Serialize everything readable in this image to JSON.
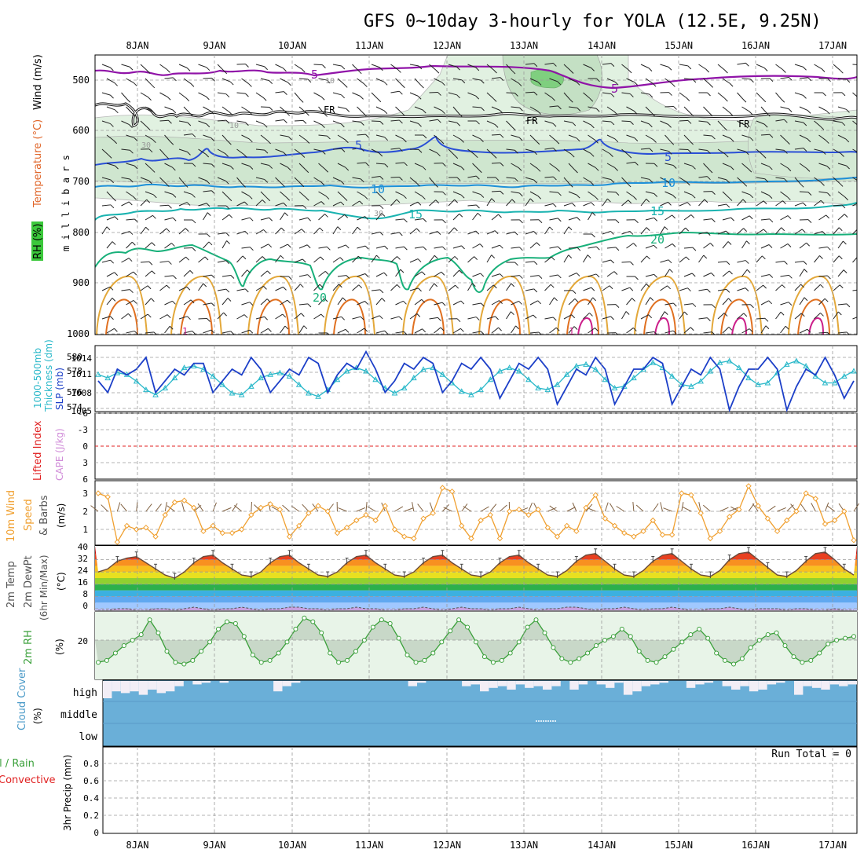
{
  "title": "GFS 0~10day 3-hourly for YOLA (12.5E, 9.25N)",
  "dates": [
    "8JAN",
    "9JAN",
    "10JAN",
    "11JAN",
    "12JAN",
    "13JAN",
    "14JAN",
    "15JAN",
    "16JAN",
    "17JAN"
  ],
  "colors": {
    "rh_fill": "#dcefdc",
    "rh_dark": "#88d488",
    "t_purple": "#9013a8",
    "t_blue": "#2a4fd6",
    "t_lblue": "#1e90d8",
    "t_teal": "#1ab3b0",
    "t_green": "#18b07a",
    "t_orange": "#e3a83a",
    "t_dorange": "#e07020",
    "t_magenta": "#cc1f8a",
    "slp": "#1c3fc8",
    "thick": "#29b8c9",
    "cape": "#d08bd8",
    "wind": "#f0a030",
    "rh2m": "#3aa03a",
    "cloud": "#6aafd8",
    "li": "#e02020"
  },
  "panels": {
    "upper": {
      "y_label_rh": "RH (%)",
      "y_label_temp": "Temperature (°C)",
      "y_label_wind": "Wind (m/s)",
      "y_label_mb": "m i l l i b a r s",
      "ticks": [
        "500",
        "600",
        "700",
        "800",
        "900",
        "1000"
      ],
      "contour_labels": [
        {
          "id": "l5a",
          "text": "5"
        },
        {
          "id": "l5b",
          "text": "5"
        },
        {
          "id": "lfra",
          "text": "FR"
        },
        {
          "id": "lfrb",
          "text": "FR"
        },
        {
          "id": "lfrc",
          "text": "FR"
        },
        {
          "id": "l5c",
          "text": "5"
        },
        {
          "id": "l5d",
          "text": "5"
        },
        {
          "id": "l10a",
          "text": "10"
        },
        {
          "id": "l10b",
          "text": "10"
        },
        {
          "id": "l15a",
          "text": "15"
        },
        {
          "id": "l15b",
          "text": "15"
        },
        {
          "id": "l20a",
          "text": "20"
        },
        {
          "id": "l20b",
          "text": "20"
        },
        {
          "id": "g10",
          "text": "10"
        },
        {
          "id": "g30a",
          "text": "30"
        },
        {
          "id": "g30b",
          "text": "30"
        },
        {
          "id": "g10b",
          "text": "10"
        },
        {
          "id": "m1",
          "text": "1"
        },
        {
          "id": "m2",
          "text": "1"
        }
      ]
    },
    "slp": {
      "label_a": "1000-500mb",
      "label_b": "Thickness (dm)",
      "label_c": "SLP (mb)",
      "left_ticks": [
        "580",
        "578",
        "576",
        "574"
      ],
      "right_ticks": [
        "1014",
        "1011",
        "1008",
        "1005"
      ]
    },
    "cape": {
      "label_a": "Lifted Index",
      "label_b": "CAPE (J/kg)",
      "ticks": [
        "-6",
        "-3",
        "0",
        "3",
        "6"
      ]
    },
    "wind": {
      "label_a": "10m Wind",
      "label_b": "Speed",
      "label_c": "& Barbs",
      "label_unit": "(m/s)",
      "ticks": [
        "3",
        "2",
        "1"
      ]
    },
    "temp": {
      "label_a": "2m Temp",
      "label_b": "2m DewPt",
      "label_c": "(6hr Min/Max)",
      "label_unit": "(°C)",
      "ticks": [
        "40",
        "32",
        "24",
        "16",
        "8",
        "0"
      ]
    },
    "rh": {
      "label_a": "2m RH",
      "label_unit": "(%)",
      "ticks": [
        "20"
      ]
    },
    "cloud": {
      "label_a": "Cloud Cover",
      "label_unit": "(%)",
      "levels": [
        "high",
        "middle",
        "low"
      ]
    },
    "precip": {
      "label_a": "tal / Rain",
      "label_b": "Convective",
      "label_c": "3hr Precip (mm)",
      "run_total": "Run Total = 0",
      "ticks": [
        "0.8",
        "0.6",
        "0.4",
        "0.2",
        "0"
      ]
    }
  },
  "chart_data": [
    {
      "type": "line",
      "title": "1000-500mb Thickness (dm) / SLP (mb)",
      "series": [
        {
          "name": "SLP (mb)",
          "axis": "right",
          "values": [
            1010,
            1008,
            1012,
            1011,
            1012,
            1014,
            1008,
            1010,
            1012,
            1011,
            1013,
            1013,
            1008,
            1010,
            1012,
            1011,
            1014,
            1012,
            1008,
            1010,
            1012,
            1011,
            1014,
            1013,
            1008,
            1011,
            1013,
            1012,
            1015,
            1012,
            1008,
            1010,
            1013,
            1012,
            1014,
            1013,
            1008,
            1010,
            1013,
            1012,
            1014,
            1012,
            1007,
            1010,
            1013,
            1012,
            1014,
            1012,
            1006,
            1009,
            1012,
            1011,
            1014,
            1012,
            1006,
            1009,
            1012,
            1012,
            1014,
            1013,
            1006,
            1009,
            1012,
            1011,
            1014,
            1012,
            1005,
            1009,
            1012,
            1012,
            1014,
            1012,
            1005,
            1009,
            1012,
            1011,
            1014,
            1011,
            1007,
            1010
          ]
        },
        {
          "name": "1000-500mb Thickness (dm)",
          "axis": "left",
          "values": [
            578.2,
            577.8,
            578.4,
            578.2,
            577.4,
            576.4,
            575.8,
            576.6,
            577.8,
            579.0,
            579.2,
            578.8,
            578.0,
            577.0,
            576.0,
            575.8,
            576.8,
            577.8,
            578.2,
            578.4,
            578.0,
            577.0,
            576.0,
            575.6,
            576.4,
            577.6,
            578.6,
            579.0,
            578.6,
            577.6,
            576.6,
            576.0,
            576.6,
            577.8,
            578.8,
            579.0,
            578.2,
            577.2,
            576.2,
            575.8,
            576.4,
            577.6,
            578.6,
            579.0,
            578.6,
            577.6,
            576.6,
            576.4,
            577.0,
            578.2,
            579.2,
            579.4,
            578.8,
            577.6,
            576.6,
            576.8,
            577.8,
            578.8,
            579.6,
            579.0,
            578.0,
            577.0,
            576.8,
            577.4,
            578.6,
            579.6,
            579.8,
            579.0,
            577.8,
            577.0,
            577.2,
            578.4,
            579.4,
            579.8,
            579.2,
            578.0,
            577.2,
            577.2,
            578.0,
            578.6
          ]
        }
      ],
      "ylim_left": [
        574,
        581
      ],
      "ylim_right": [
        1005,
        1016
      ]
    },
    {
      "type": "line",
      "title": "10m Wind Speed (m/s)",
      "series": [
        {
          "name": "Speed",
          "values": [
            3.0,
            2.8,
            0.3,
            1.2,
            1.0,
            1.1,
            0.6,
            1.8,
            2.5,
            2.6,
            2.2,
            0.9,
            1.2,
            0.8,
            0.8,
            1.0,
            1.8,
            2.2,
            2.4,
            2.1,
            0.6,
            1.2,
            1.9,
            2.3,
            2.0,
            0.8,
            1.1,
            1.5,
            1.8,
            1.5,
            2.3,
            1.0,
            0.6,
            0.5,
            1.6,
            1.9,
            3.3,
            3.1,
            1.2,
            0.5,
            1.5,
            1.8,
            0.5,
            2.0,
            2.1,
            1.8,
            2.1,
            1.1,
            0.6,
            1.2,
            0.9,
            2.2,
            2.9,
            1.6,
            1.2,
            0.8,
            0.6,
            0.9,
            1.5,
            0.7,
            0.7,
            3.0,
            2.9,
            1.9,
            0.5,
            0.9,
            1.7,
            2.1,
            3.4,
            2.3,
            1.6,
            0.9,
            1.5,
            2.0,
            3.0,
            2.7,
            1.3,
            1.5,
            2.0,
            0.4
          ]
        }
      ],
      "ylim": [
        0.2,
        3.6
      ]
    },
    {
      "type": "area",
      "title": "2m Temp (°C)",
      "series": [
        {
          "name": "2m Temp",
          "values": [
            24,
            26,
            31,
            33,
            34,
            30,
            26,
            22,
            20,
            24,
            30,
            34,
            35,
            30,
            26,
            22,
            21,
            24,
            30,
            34,
            35,
            30,
            26,
            22,
            21,
            24,
            30,
            34,
            35,
            30,
            26,
            22,
            21,
            24,
            30,
            34,
            35,
            30,
            26,
            22,
            21,
            24,
            30,
            34,
            35,
            30,
            26,
            22,
            21,
            25,
            31,
            35,
            36,
            31,
            26,
            22,
            21,
            25,
            31,
            35,
            36,
            31,
            26,
            22,
            21,
            25,
            32,
            36,
            37,
            32,
            27,
            22,
            21,
            25,
            31,
            36,
            37,
            32,
            26,
            22
          ]
        },
        {
          "name": "2m DewPt",
          "values": [
            -1,
            -1,
            0,
            0,
            -1,
            -1,
            0,
            0,
            -1,
            0,
            1,
            0,
            -1,
            0,
            0,
            1,
            0,
            -1,
            0,
            0,
            1,
            1,
            0,
            0,
            -1,
            0,
            0,
            1,
            0,
            0,
            -1,
            -1,
            0,
            0,
            1,
            0,
            -1,
            0,
            1,
            0,
            0,
            -1,
            0,
            0,
            1,
            0,
            -1,
            0,
            0,
            1,
            1,
            0,
            -1,
            0,
            0,
            1,
            0,
            -1,
            0,
            0,
            1,
            0,
            -1,
            -1,
            0,
            0,
            1,
            0,
            -1,
            0,
            0,
            0,
            -1,
            0,
            0,
            -1,
            -1,
            0,
            -1,
            -1
          ]
        }
      ],
      "ylim": [
        -2,
        40
      ]
    },
    {
      "type": "area",
      "title": "2m RH (%)",
      "series": [
        {
          "name": "2m RH",
          "values": [
            8,
            9,
            13,
            17,
            20,
            23,
            31,
            24,
            14,
            8,
            7,
            9,
            14,
            19,
            26,
            30,
            29,
            22,
            12,
            8,
            9,
            13,
            19,
            26,
            32,
            30,
            24,
            13,
            8,
            9,
            14,
            20,
            27,
            31,
            29,
            21,
            12,
            8,
            9,
            13,
            19,
            25,
            31,
            27,
            19,
            11,
            8,
            9,
            13,
            19,
            27,
            31,
            24,
            16,
            10,
            8,
            10,
            13,
            17,
            20,
            22,
            26,
            22,
            14,
            9,
            8,
            11,
            15,
            19,
            23,
            26,
            21,
            13,
            9,
            7,
            10,
            16,
            20,
            23,
            24,
            17,
            11,
            8,
            9,
            13,
            18,
            20,
            21,
            22
          ]
        }
      ],
      "ylim": [
        0,
        34
      ]
    },
    {
      "type": "heatmap",
      "title": "Cloud Cover (%)",
      "categories": [
        "high",
        "middle",
        "low"
      ],
      "high_values": [
        100,
        60,
        70,
        60,
        80,
        50,
        70,
        60,
        30,
        0,
        20,
        10,
        0,
        10,
        0,
        0,
        0,
        0,
        0,
        60,
        30,
        10,
        0,
        0,
        0,
        0,
        0,
        0,
        0,
        0,
        0,
        0,
        0,
        0,
        30,
        10,
        0,
        0,
        0,
        0,
        30,
        20,
        60,
        40,
        30,
        50,
        20,
        40,
        30,
        50,
        30,
        0,
        50,
        20,
        0,
        20,
        40,
        10,
        80,
        60,
        30,
        20,
        10,
        0,
        0,
        40,
        20,
        10,
        0,
        30,
        50,
        30,
        60,
        50,
        20,
        10,
        0,
        80,
        30,
        40,
        50,
        20,
        30,
        20
      ]
    },
    {
      "type": "bar",
      "title": "3hr Precip (mm)",
      "run_total": 0,
      "ylim": [
        0,
        1
      ]
    }
  ]
}
